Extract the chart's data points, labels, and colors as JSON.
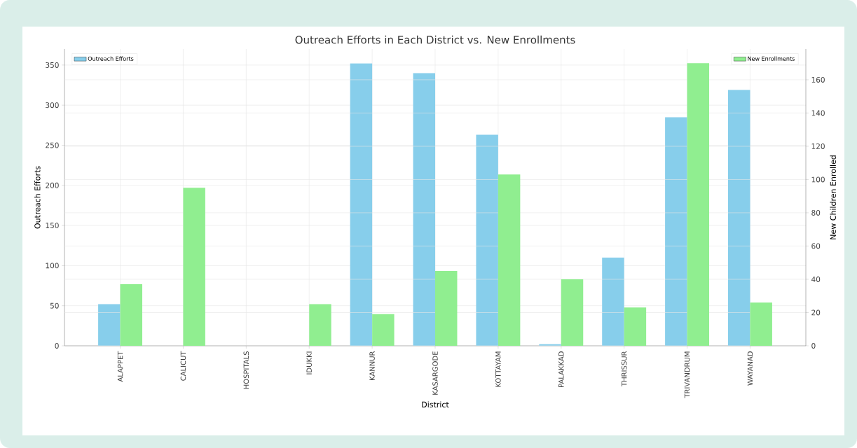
{
  "chart_data": {
    "type": "bar",
    "title": "Outreach Efforts in Each District vs. New Enrollments",
    "xlabel": "District",
    "ylabel": "Outreach Efforts",
    "y2label": "New Children Enrolled",
    "categories": [
      "ALAPPET",
      "CALICUT",
      "HOSPITALS",
      "IDUKKI",
      "KANNUR",
      "KASARGODE",
      "KOTTAYAM",
      "PALAKKAD",
      "THRISSUR",
      "TRIVANDRUM",
      "WAYANAD"
    ],
    "series": [
      {
        "name": "Outreach Efforts",
        "color": "#87ceeb",
        "axis": "y",
        "values": [
          52,
          0,
          0,
          0,
          352,
          340,
          263,
          2,
          110,
          285,
          319
        ]
      },
      {
        "name": "New Enrollments",
        "color": "#90ee90",
        "axis": "y2",
        "values": [
          37,
          95,
          0,
          25,
          19,
          45,
          103,
          40,
          23,
          170,
          26
        ]
      }
    ],
    "ylim": [
      0,
      370
    ],
    "yticks": [
      0,
      50,
      100,
      150,
      200,
      250,
      300,
      350
    ],
    "y2lim": [
      0,
      178.5
    ],
    "y2ticks": [
      0,
      20,
      40,
      60,
      80,
      100,
      120,
      140,
      160
    ],
    "grid": true,
    "legend": "top"
  }
}
